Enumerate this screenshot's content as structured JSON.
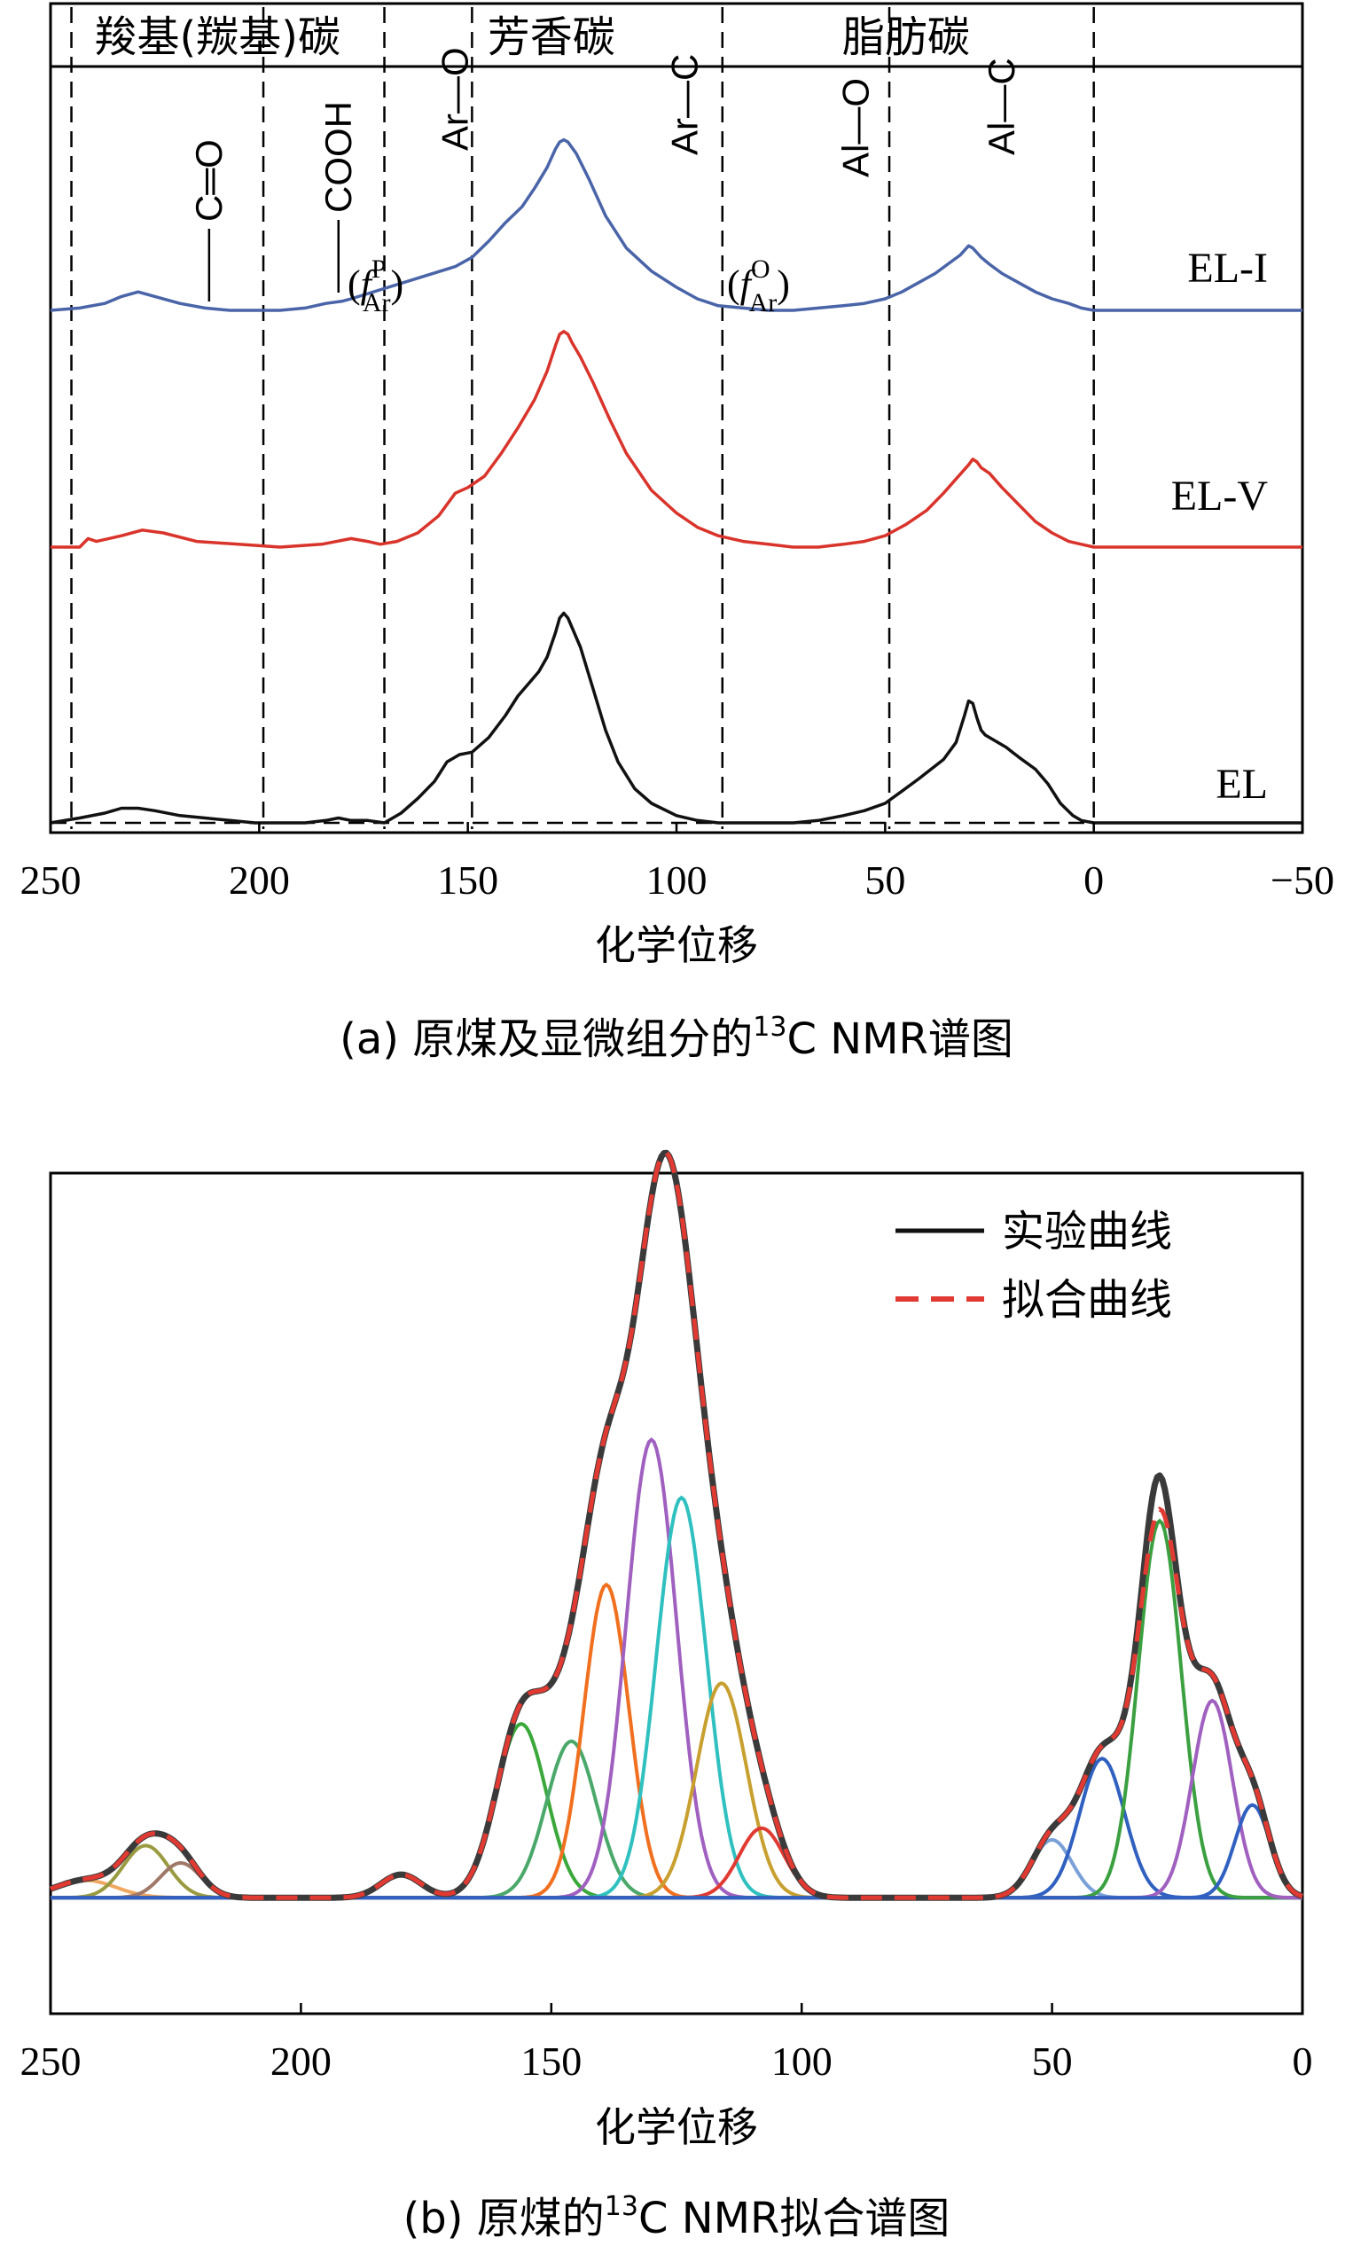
{
  "chart_data": [
    {
      "id": "a",
      "type": "line",
      "caption": {
        "prefix": "(a) 原煤及显微组分的",
        "superscript": "13",
        "suffix": "C NMR谱图"
      },
      "xlabel": "化学位移",
      "xlim": [
        250,
        -50
      ],
      "xticks": [
        250,
        200,
        150,
        100,
        50,
        0,
        -50
      ],
      "xtick_labels": [
        "250",
        "200",
        "150",
        "100",
        "50",
        "0",
        "−50"
      ],
      "region_labels": [
        {
          "text": "羧基(羰基)碳",
          "from": 250,
          "to": 170
        },
        {
          "text": "芳香碳",
          "from": 170,
          "to": 90
        },
        {
          "text": "脂肪碳",
          "from": 90,
          "to": 0
        }
      ],
      "boundaries": [
        245,
        199,
        170,
        149,
        89,
        49,
        0
      ],
      "annotations": [
        {
          "id": "c_o",
          "text": "C═O",
          "x": 212
        },
        {
          "id": "cooh",
          "text": "COOH",
          "x": 181
        },
        {
          "id": "ar_o",
          "text": "Ar—O",
          "x": 153
        },
        {
          "id": "ar_c",
          "text": "Ar—C",
          "x": 98
        },
        {
          "id": "al_o",
          "text": "Al—O",
          "x": 57
        },
        {
          "id": "al_c",
          "text": "Al—C",
          "x": 22
        }
      ],
      "fractions": [
        {
          "id": "fpar",
          "symbol": "f",
          "sup": "P",
          "sub": "Ar"
        },
        {
          "id": "foar",
          "symbol": "f",
          "sup": "O",
          "sub": "Ar"
        }
      ],
      "series": [
        {
          "name": "EL-I",
          "color": "#4a64a8",
          "x": [
            250,
            243,
            237,
            233,
            229,
            225,
            219,
            213,
            207,
            201,
            195,
            189,
            184,
            180,
            178,
            153,
            149,
            145,
            141,
            137,
            134,
            131,
            129,
            128,
            127,
            126,
            124,
            121,
            117,
            112,
            106,
            100,
            95,
            90,
            84,
            78,
            72,
            66,
            60,
            55,
            50,
            46,
            42,
            38,
            35,
            32,
            30,
            29,
            28,
            27,
            25,
            22,
            18,
            14,
            10,
            6,
            3,
            0,
            -5,
            -15,
            -30,
            -50
          ],
          "y": [
            0.0,
            0.01,
            0.03,
            0.06,
            0.08,
            0.06,
            0.03,
            0.01,
            0.0,
            0.0,
            0.0,
            0.01,
            0.03,
            0.04,
            0.05,
            0.19,
            0.23,
            0.3,
            0.38,
            0.45,
            0.53,
            0.62,
            0.7,
            0.73,
            0.74,
            0.73,
            0.68,
            0.57,
            0.41,
            0.27,
            0.17,
            0.1,
            0.05,
            0.02,
            0.01,
            0.0,
            0.0,
            0.01,
            0.02,
            0.03,
            0.05,
            0.08,
            0.12,
            0.16,
            0.2,
            0.24,
            0.28,
            0.27,
            0.25,
            0.23,
            0.2,
            0.16,
            0.12,
            0.08,
            0.05,
            0.03,
            0.01,
            0.0,
            0.0,
            0.0,
            0.0,
            0.0
          ]
        },
        {
          "name": "EL-V",
          "color": "#d9342b",
          "x": [
            250,
            243,
            241,
            239,
            233,
            228,
            223,
            215,
            205,
            195,
            185,
            178,
            174,
            171,
            167,
            162,
            157,
            153,
            150,
            146,
            142,
            138,
            134,
            131,
            129,
            128,
            127,
            126,
            125,
            123,
            120,
            116,
            112,
            106,
            100,
            95,
            90,
            84,
            78,
            72,
            66,
            60,
            55,
            50,
            45,
            40,
            36,
            33,
            30,
            29,
            28,
            27,
            25,
            22,
            18,
            14,
            10,
            6,
            3,
            0,
            -5,
            -15,
            -30,
            -50
          ],
          "y": [
            0.0,
            0.0,
            0.03,
            0.02,
            0.04,
            0.06,
            0.05,
            0.02,
            0.01,
            0.0,
            0.01,
            0.03,
            0.02,
            0.01,
            0.02,
            0.05,
            0.11,
            0.19,
            0.21,
            0.25,
            0.33,
            0.42,
            0.52,
            0.62,
            0.71,
            0.75,
            0.76,
            0.75,
            0.72,
            0.67,
            0.58,
            0.45,
            0.33,
            0.2,
            0.12,
            0.07,
            0.04,
            0.02,
            0.01,
            0.0,
            0.0,
            0.01,
            0.02,
            0.04,
            0.08,
            0.13,
            0.19,
            0.24,
            0.29,
            0.31,
            0.3,
            0.28,
            0.26,
            0.21,
            0.15,
            0.09,
            0.05,
            0.02,
            0.01,
            0.0,
            0.0,
            0.0,
            0.0,
            0.0
          ]
        },
        {
          "name": "EL",
          "color": "#111111",
          "x": [
            250,
            243,
            237,
            233,
            229,
            225,
            219,
            213,
            207,
            201,
            195,
            189,
            184,
            181,
            178,
            174,
            170,
            166,
            162,
            158,
            155,
            152,
            149,
            145,
            141,
            138,
            135,
            133,
            131,
            129,
            128,
            127,
            126,
            125,
            123,
            120,
            117,
            114,
            110,
            106,
            100,
            95,
            90,
            84,
            78,
            72,
            66,
            60,
            55,
            50,
            46,
            42,
            39,
            36,
            33,
            31,
            30,
            29,
            28,
            27,
            26,
            24,
            21,
            18,
            14,
            11,
            8,
            5,
            3,
            0,
            -5,
            -15,
            -30,
            -50
          ],
          "y": [
            0.0,
            0.02,
            0.04,
            0.06,
            0.06,
            0.05,
            0.03,
            0.02,
            0.01,
            0.0,
            0.0,
            0.0,
            0.01,
            0.02,
            0.01,
            0.01,
            0.0,
            0.04,
            0.1,
            0.17,
            0.25,
            0.28,
            0.29,
            0.35,
            0.44,
            0.52,
            0.58,
            0.62,
            0.68,
            0.78,
            0.84,
            0.86,
            0.84,
            0.8,
            0.72,
            0.55,
            0.38,
            0.25,
            0.14,
            0.08,
            0.03,
            0.01,
            0.0,
            0.0,
            0.0,
            0.0,
            0.01,
            0.03,
            0.05,
            0.08,
            0.13,
            0.18,
            0.22,
            0.26,
            0.33,
            0.44,
            0.5,
            0.49,
            0.43,
            0.38,
            0.36,
            0.34,
            0.31,
            0.27,
            0.22,
            0.16,
            0.08,
            0.03,
            0.01,
            0.0,
            0.0,
            0.0,
            0.0,
            0.0
          ]
        }
      ]
    },
    {
      "id": "b",
      "type": "line",
      "caption": {
        "prefix": "(b) 原煤的",
        "superscript": "13",
        "suffix": "C NMR拟合谱图"
      },
      "xlabel": "化学位移",
      "xlim": [
        250,
        0
      ],
      "ylim": [
        -0.2,
        1.25
      ],
      "xticks": [
        250,
        200,
        150,
        100,
        50,
        0
      ],
      "xtick_labels": [
        "250",
        "200",
        "150",
        "100",
        "50",
        "0"
      ],
      "legend": {
        "placement": "top-right",
        "entries": [
          {
            "label": "实验曲线",
            "color": "#111111",
            "style": "solid"
          },
          {
            "label": "拟合曲线",
            "color": "#e03a32",
            "style": "dashed"
          }
        ]
      },
      "component_peaks": [
        {
          "center": 243,
          "height": 0.03,
          "width": 6,
          "color": "#f0a860"
        },
        {
          "center": 231,
          "height": 0.09,
          "width": 4.5,
          "color": "#9a9a40"
        },
        {
          "center": 224,
          "height": 0.06,
          "width": 4,
          "color": "#a07868"
        },
        {
          "center": 180,
          "height": 0.04,
          "width": 4,
          "color": "#8a6a5a"
        },
        {
          "center": 156,
          "height": 0.3,
          "width": 5,
          "color": "#3aa83a"
        },
        {
          "center": 146,
          "height": 0.27,
          "width": 5,
          "color": "#4aa86a"
        },
        {
          "center": 139,
          "height": 0.54,
          "width": 4.5,
          "color": "#f07020"
        },
        {
          "center": 130,
          "height": 0.79,
          "width": 5,
          "color": "#a060c0"
        },
        {
          "center": 124,
          "height": 0.69,
          "width": 5,
          "color": "#30c0c0"
        },
        {
          "center": 116,
          "height": 0.37,
          "width": 5,
          "color": "#c8a030"
        },
        {
          "center": 108,
          "height": 0.12,
          "width": 4.5,
          "color": "#e03a32"
        },
        {
          "center": 50,
          "height": 0.1,
          "width": 4,
          "color": "#7aa0d8"
        },
        {
          "center": 40,
          "height": 0.24,
          "width": 4.5,
          "color": "#3060c0"
        },
        {
          "center": 28.5,
          "height": 0.65,
          "width": 4.3,
          "color": "#3aa040"
        },
        {
          "center": 18,
          "height": 0.34,
          "width": 4,
          "color": "#a060c0"
        },
        {
          "center": 10,
          "height": 0.16,
          "width": 3.5,
          "color": "#3060c0"
        }
      ],
      "experimental_shoulders": [
        {
          "center": 29,
          "height": 0.06,
          "width": 2.2
        }
      ]
    }
  ]
}
